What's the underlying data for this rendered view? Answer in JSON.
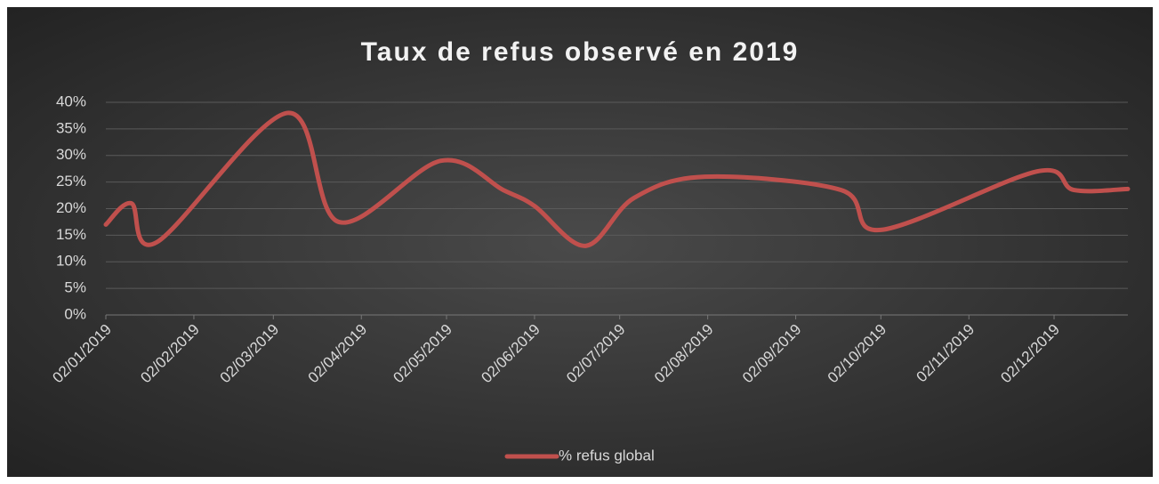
{
  "chart_data": {
    "type": "line",
    "title": "Taux de refus observé en 2019",
    "x": [
      "2019-01-02",
      "2019-01-11",
      "2019-01-20",
      "2019-03-07",
      "2019-03-25",
      "2019-04-30",
      "2019-05-22",
      "2019-06-02",
      "2019-06-20",
      "2019-07-07",
      "2019-08-01",
      "2019-09-18",
      "2019-10-02",
      "2019-11-26",
      "2019-12-09",
      "2019-12-28"
    ],
    "series": [
      {
        "name": "% refus global",
        "color": "#c0504d",
        "values": [
          17,
          21,
          13.7,
          38,
          17.5,
          29,
          23.5,
          20.5,
          13,
          22,
          26,
          23.5,
          16,
          27,
          23.5,
          23.7
        ]
      }
    ],
    "xlim": [
      "2019-01-02",
      "2019-12-28"
    ],
    "xticks": [
      {
        "value": "2019-01-02",
        "label": "02/01/2019"
      },
      {
        "value": "2019-02-02",
        "label": "02/02/2019"
      },
      {
        "value": "2019-03-02",
        "label": "02/03/2019"
      },
      {
        "value": "2019-04-02",
        "label": "02/04/2019"
      },
      {
        "value": "2019-05-02",
        "label": "02/05/2019"
      },
      {
        "value": "2019-06-02",
        "label": "02/06/2019"
      },
      {
        "value": "2019-07-02",
        "label": "02/07/2019"
      },
      {
        "value": "2019-08-02",
        "label": "02/08/2019"
      },
      {
        "value": "2019-09-02",
        "label": "02/09/2019"
      },
      {
        "value": "2019-10-02",
        "label": "02/10/2019"
      },
      {
        "value": "2019-11-02",
        "label": "02/11/2019"
      },
      {
        "value": "2019-12-02",
        "label": "02/12/2019"
      }
    ],
    "ylim": [
      0,
      40
    ],
    "yticks": [
      {
        "value": 0,
        "label": "0%"
      },
      {
        "value": 5,
        "label": "5%"
      },
      {
        "value": 10,
        "label": "10%"
      },
      {
        "value": 15,
        "label": "15%"
      },
      {
        "value": 20,
        "label": "20%"
      },
      {
        "value": 25,
        "label": "25%"
      },
      {
        "value": 30,
        "label": "30%"
      },
      {
        "value": 35,
        "label": "35%"
      },
      {
        "value": 40,
        "label": "40%"
      }
    ],
    "grid": true,
    "legend": "bottom"
  }
}
